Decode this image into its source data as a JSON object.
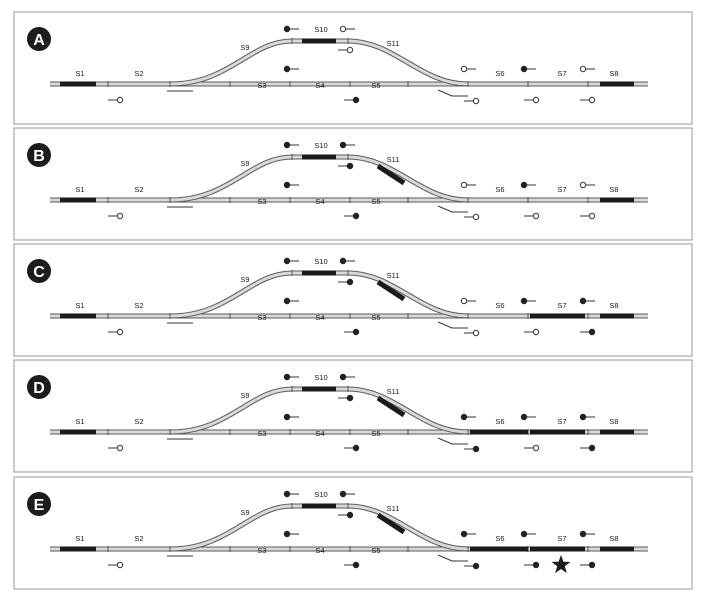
{
  "figure": {
    "panels": [
      {
        "id": "A",
        "letter": "A",
        "occupied": [
          "S1",
          "S10",
          "S8"
        ],
        "signals": {
          "s10_up_left": "on",
          "s10_up_right": "off",
          "s10_down": "off",
          "s4_up": "on",
          "s4_down": "on",
          "s6_up_left": "off",
          "s6_up_right": "on",
          "s7_up": "off",
          "s2_down": "off",
          "s6_down_left": "off",
          "s6_down_mid": "off",
          "s7_down": "off"
        },
        "star": false
      },
      {
        "id": "B",
        "letter": "B",
        "occupied": [
          "S1",
          "S10",
          "S11",
          "S8"
        ],
        "signals": {
          "s10_up_left": "on",
          "s10_up_right": "on",
          "s10_down": "on",
          "s4_up": "on",
          "s4_down": "on",
          "s6_up_left": "off",
          "s6_up_right": "on",
          "s7_up": "off",
          "s2_down": "off",
          "s6_down_left": "off",
          "s6_down_mid": "off",
          "s7_down": "off"
        },
        "star": false
      },
      {
        "id": "C",
        "letter": "C",
        "occupied": [
          "S1",
          "S10",
          "S11",
          "S7",
          "S8"
        ],
        "signals": {
          "s10_up_left": "on",
          "s10_up_right": "on",
          "s10_down": "on",
          "s4_up": "on",
          "s4_down": "on",
          "s6_up_left": "off",
          "s6_up_right": "on",
          "s7_up": "on",
          "s2_down": "off",
          "s6_down_left": "off",
          "s6_down_mid": "off",
          "s7_down": "on"
        },
        "star": false
      },
      {
        "id": "D",
        "letter": "D",
        "occupied": [
          "S1",
          "S10",
          "S11",
          "S6",
          "S7",
          "S8"
        ],
        "signals": {
          "s10_up_left": "on",
          "s10_up_right": "on",
          "s10_down": "on",
          "s4_up": "on",
          "s4_down": "on",
          "s6_up_left": "on",
          "s6_up_right": "on",
          "s7_up": "on",
          "s2_down": "off",
          "s6_down_left": "on",
          "s6_down_mid": "off",
          "s7_down": "on"
        },
        "star": false
      },
      {
        "id": "E",
        "letter": "E",
        "occupied": [
          "S1",
          "S10",
          "S11",
          "S6",
          "S7",
          "S8"
        ],
        "signals": {
          "s10_up_left": "on",
          "s10_up_right": "on",
          "s10_down": "on",
          "s4_up": "on",
          "s4_down": "on",
          "s6_up_left": "on",
          "s6_up_right": "on",
          "s7_up": "on",
          "s2_down": "off",
          "s6_down_left": "on",
          "s6_down_mid": "on",
          "s7_down": "on"
        },
        "star": true
      }
    ],
    "section_labels": {
      "S1": "S1",
      "S2": "S2",
      "S3": "S3",
      "S4": "S4",
      "S5": "S5",
      "S6": "S6",
      "S7": "S7",
      "S8": "S8",
      "S9": "S9",
      "S10": "S10",
      "S11": "S11"
    }
  }
}
